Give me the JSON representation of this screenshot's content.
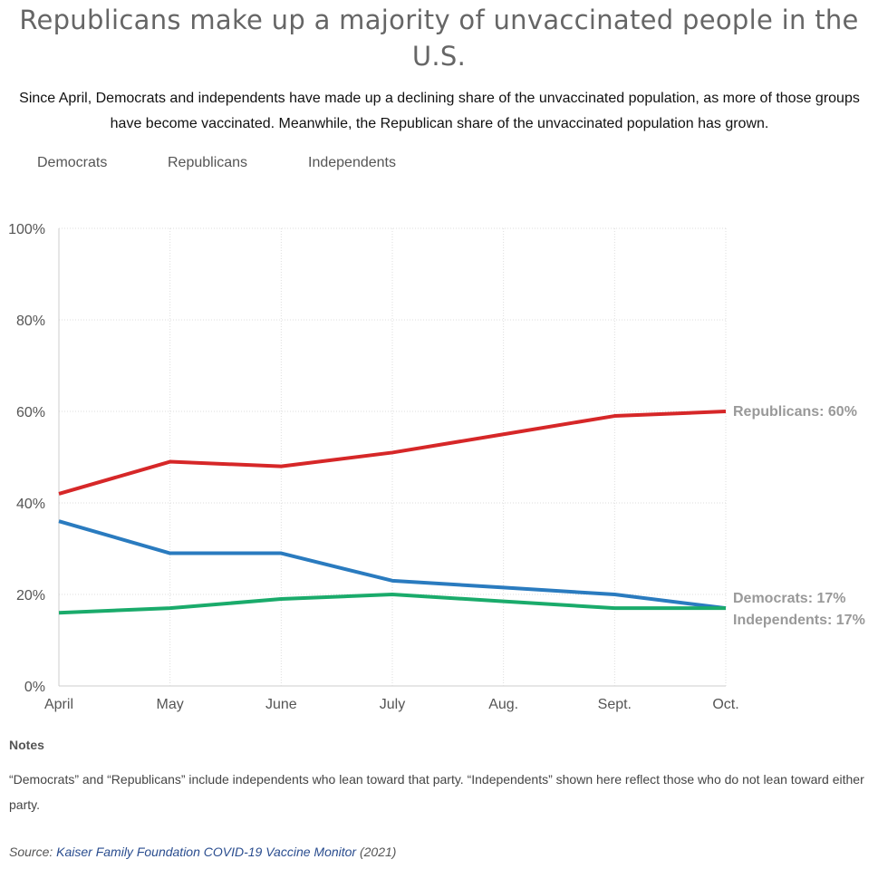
{
  "header": {
    "title": "Republicans make up a majority of unvaccinated people in the U.S.",
    "subtitle": "Since April, Democrats and independents have made up a declining share of the unvaccinated population, as more of those groups have become vaccinated. Meanwhile, the Republican share of the unvaccinated population has grown."
  },
  "legend": [
    "Democrats",
    "Republicans",
    "Independents"
  ],
  "chart_data": {
    "type": "line",
    "categories": [
      "April",
      "May",
      "June",
      "July",
      "Aug.",
      "Sept.",
      "Oct."
    ],
    "y_tick_labels": [
      "0%",
      "20%",
      "40%",
      "60%",
      "80%",
      "100%"
    ],
    "ylim": [
      0,
      100
    ],
    "grid": true,
    "series": [
      {
        "name": "Republicans",
        "color": "#d62728",
        "values": [
          42,
          49,
          48,
          51,
          55,
          59,
          60
        ],
        "end_label": "Republicans: 60%"
      },
      {
        "name": "Democrats",
        "color": "#2a7bbf",
        "values": [
          36,
          29,
          29,
          23,
          21.5,
          20,
          17
        ],
        "end_label": "Democrats: 17%"
      },
      {
        "name": "Independents",
        "color": "#1aab6b",
        "values": [
          16,
          17,
          19,
          20,
          18.5,
          17,
          17
        ],
        "end_label": "Independents: 17%"
      }
    ]
  },
  "notes": {
    "heading": "Notes",
    "text": "“Democrats” and “Republicans” include independents who lean toward that party. “Independents” shown here reflect those who do not lean toward either party."
  },
  "source": {
    "prefix": "Source: ",
    "link_text": "Kaiser Family Foundation COVID-19 Vaccine Monitor",
    "suffix": " (2021)"
  }
}
